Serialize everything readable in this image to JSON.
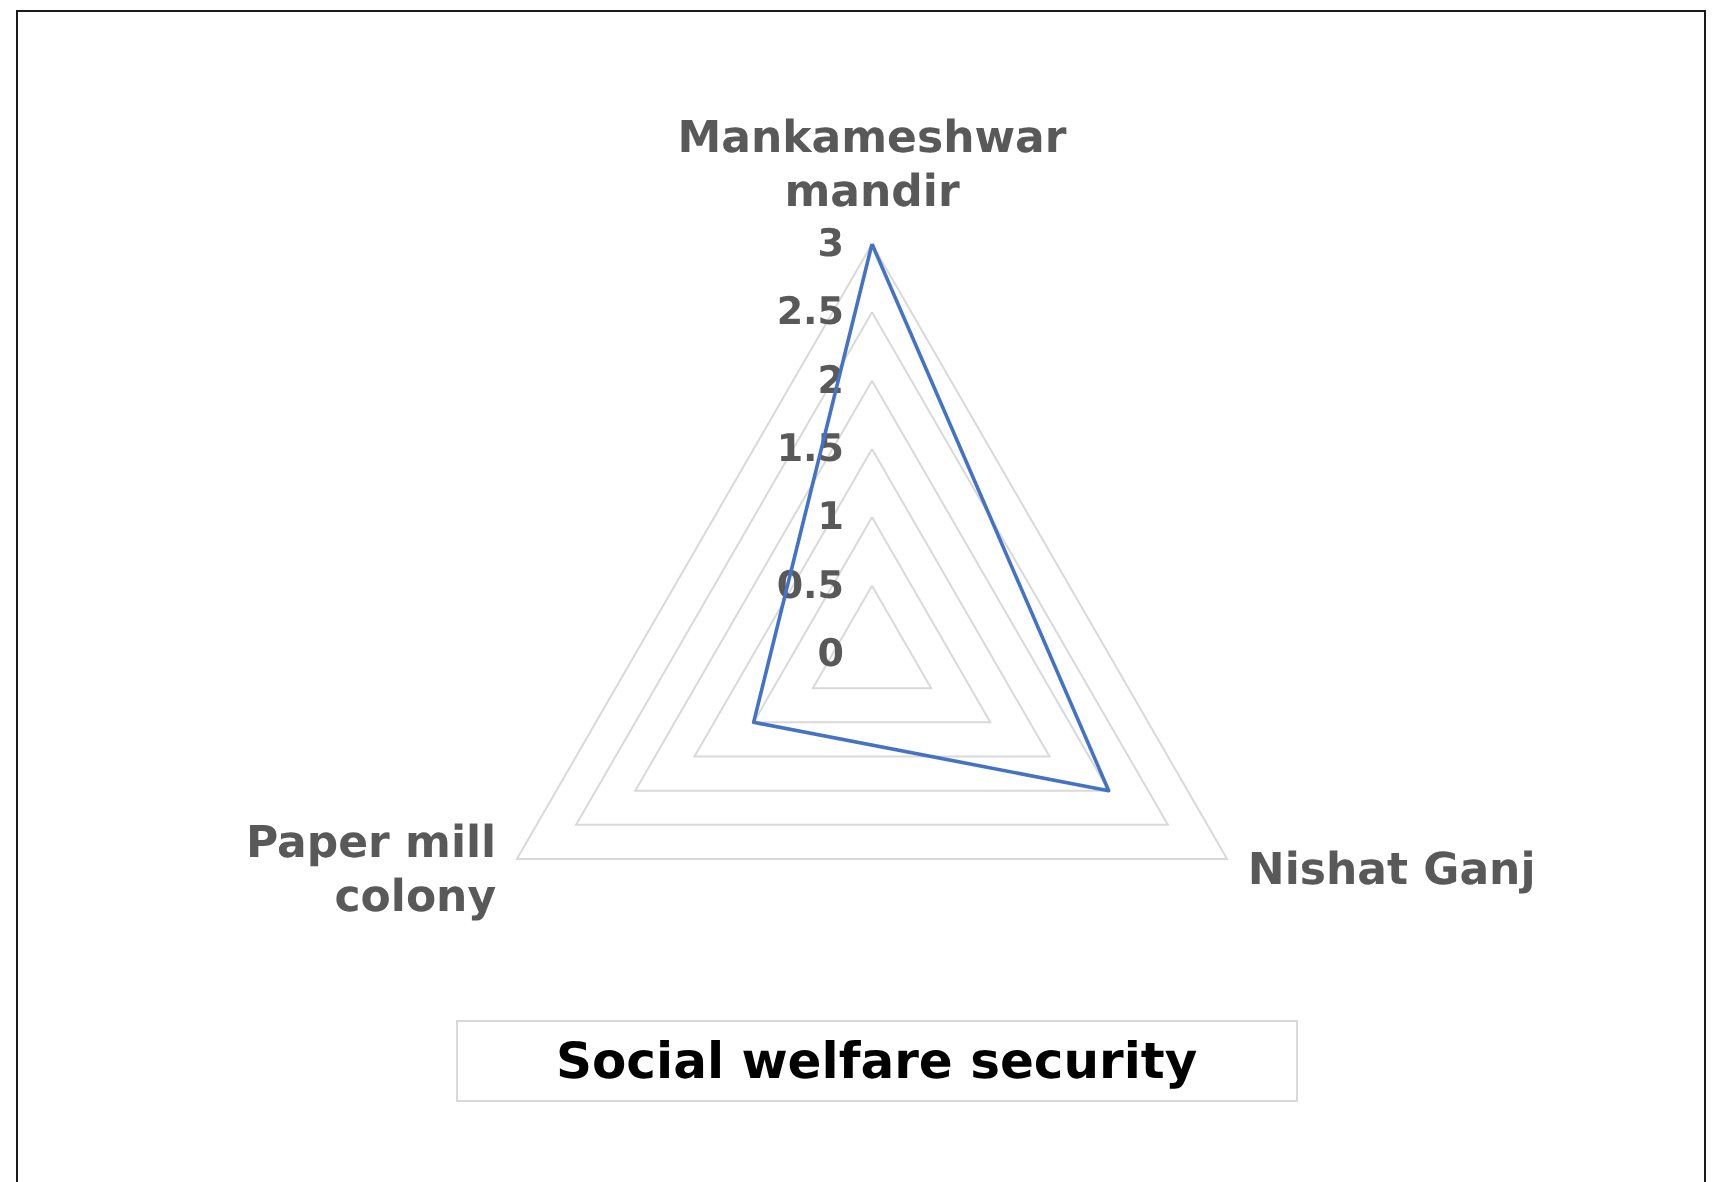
{
  "chart_data": {
    "type": "radar",
    "title": "Social welfare security",
    "categories": [
      "Mankameshwar mandir",
      "Nishat Ganj",
      "Paper mill colony"
    ],
    "series": [
      {
        "color": "#4472c4",
        "values": [
          3,
          2,
          1
        ]
      }
    ],
    "ylim": [
      0,
      3
    ],
    "yticks": [
      0,
      0.5,
      1,
      1.5,
      2,
      2.5,
      3
    ],
    "grid": true,
    "marker": "none",
    "line_style": "solid"
  }
}
